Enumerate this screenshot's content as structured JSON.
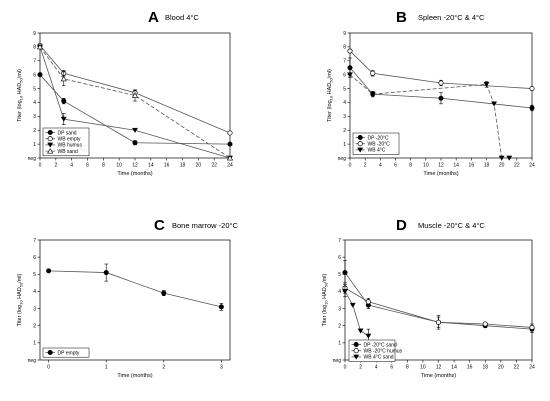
{
  "chart_data": [
    {
      "type": "line",
      "letter": "A",
      "title": "Blood 4°C",
      "xlabel": "Time (months)",
      "ylabel_parts": [
        "Titer (log",
        "10",
        " HAD",
        "50",
        "/ml)"
      ],
      "xticks": [
        0,
        2,
        4,
        6,
        8,
        10,
        12,
        14,
        16,
        18,
        20,
        22,
        24
      ],
      "xlim": [
        0,
        24
      ],
      "yticks": [
        0,
        1,
        2,
        3,
        4,
        5,
        6,
        7,
        8,
        9
      ],
      "ytick_labels": [
        "neg",
        "1",
        "2",
        "3",
        "4",
        "5",
        "6",
        "7",
        "8",
        "9"
      ],
      "ylim": [
        0,
        9
      ],
      "legend_position": "bottom-left",
      "series": [
        {
          "name": "DP sand",
          "marker": "filled-circle",
          "dash": "",
          "points": [
            {
              "x": 0,
              "y": 6.0,
              "err": 0.1
            },
            {
              "x": 3,
              "y": 4.1,
              "err": 0.2
            },
            {
              "x": 12,
              "y": 1.1,
              "err": 0.15
            },
            {
              "x": 24,
              "y": 1.0,
              "err": 0
            }
          ]
        },
        {
          "name": "WB empty",
          "marker": "open-circle",
          "dash": "",
          "points": [
            {
              "x": 0,
              "y": 8.1,
              "err": 0.1
            },
            {
              "x": 3,
              "y": 6.1,
              "err": 0.2
            },
            {
              "x": 12,
              "y": 4.7,
              "err": 0.2
            },
            {
              "x": 24,
              "y": 1.8,
              "err": 0
            }
          ]
        },
        {
          "name": "WB humus",
          "marker": "filled-triangle-down",
          "dash": "",
          "points": [
            {
              "x": 0,
              "y": 8.0,
              "err": 0.1
            },
            {
              "x": 3,
              "y": 2.8,
              "err": 0.4
            },
            {
              "x": 12,
              "y": 2.0,
              "err": 0
            },
            {
              "x": 24,
              "y": 0,
              "err": 0
            }
          ]
        },
        {
          "name": "WB sand",
          "marker": "open-triangle-up",
          "dash": "4,2",
          "points": [
            {
              "x": 0,
              "y": 8.0,
              "err": 0.1
            },
            {
              "x": 3,
              "y": 5.7,
              "err": 0.5
            },
            {
              "x": 12,
              "y": 4.5,
              "err": 0.4
            },
            {
              "x": 24,
              "y": 0,
              "err": 0
            }
          ]
        }
      ]
    },
    {
      "type": "line",
      "letter": "B",
      "title": "Spleen -20°C & 4°C",
      "xlabel": "Time (months)",
      "ylabel_parts": [
        "Titer (log",
        "10",
        " HAD",
        "50",
        "/ml)"
      ],
      "xticks": [
        0,
        2,
        4,
        6,
        8,
        10,
        12,
        14,
        16,
        18,
        20,
        22,
        24
      ],
      "xlim": [
        0,
        24
      ],
      "yticks": [
        0,
        1,
        2,
        3,
        4,
        5,
        6,
        7,
        8,
        9
      ],
      "ytick_labels": [
        "neg",
        "1",
        "2",
        "3",
        "4",
        "5",
        "6",
        "7",
        "8",
        "9"
      ],
      "ylim": [
        0,
        9
      ],
      "legend_position": "bottom-left",
      "series": [
        {
          "name": "DP -20°C",
          "marker": "filled-circle",
          "dash": "",
          "points": [
            {
              "x": 0,
              "y": 6.5,
              "err": 0.7
            },
            {
              "x": 3,
              "y": 4.6,
              "err": 0.2
            },
            {
              "x": 12,
              "y": 4.3,
              "err": 0.4
            },
            {
              "x": 24,
              "y": 3.6,
              "err": 0.2
            }
          ]
        },
        {
          "name": "WB -20°C",
          "marker": "open-circle",
          "dash": "",
          "points": [
            {
              "x": 0,
              "y": 7.7,
              "err": 0.1
            },
            {
              "x": 3,
              "y": 6.1,
              "err": 0.2
            },
            {
              "x": 12,
              "y": 5.4,
              "err": 0.2
            },
            {
              "x": 24,
              "y": 5.0,
              "err": 0
            }
          ]
        },
        {
          "name": "WB 4°C",
          "marker": "filled-triangle-down",
          "dash": "4,2",
          "points": [
            {
              "x": 0,
              "y": 6.0,
              "err": 0.1
            },
            {
              "x": 3,
              "y": 4.6,
              "err": 0.1
            },
            {
              "x": 18,
              "y": 5.3,
              "err": 0.2
            },
            {
              "x": 19,
              "y": 3.9,
              "err": 0
            },
            {
              "x": 20,
              "y": 0,
              "err": 0
            },
            {
              "x": 21,
              "y": 0,
              "err": 0
            }
          ]
        }
      ]
    },
    {
      "type": "line",
      "letter": "C",
      "title": "Bone marrow -20°C",
      "xlabel": "Time (months)",
      "ylabel_parts": [
        "Titer (log",
        "10",
        " HAD",
        "50",
        "/ml)"
      ],
      "xticks": [
        0,
        1,
        2,
        3
      ],
      "xlim": [
        -0.15,
        3.15
      ],
      "yticks": [
        0,
        1,
        2,
        3,
        4,
        5,
        6,
        7
      ],
      "ytick_labels": [
        "neg",
        "1",
        "2",
        "3",
        "4",
        "5",
        "6",
        "7"
      ],
      "ylim": [
        0,
        7
      ],
      "legend_position": "bottom-left",
      "series": [
        {
          "name": "DP empty",
          "marker": "filled-circle",
          "dash": "",
          "points": [
            {
              "x": 0,
              "y": 5.2,
              "err": 0
            },
            {
              "x": 1,
              "y": 5.1,
              "err": 0.5
            },
            {
              "x": 2,
              "y": 3.9,
              "err": 0.15
            },
            {
              "x": 3,
              "y": 3.1,
              "err": 0.2
            }
          ]
        }
      ]
    },
    {
      "type": "line",
      "letter": "D",
      "title": "Muscle -20°C & 4°C",
      "xlabel": "Time (months)",
      "ylabel_parts": [
        "Titer (log",
        "10",
        " HAD",
        "50",
        "/ml)"
      ],
      "xticks": [
        0,
        2,
        4,
        6,
        8,
        10,
        12,
        14,
        16,
        18,
        20,
        22,
        24
      ],
      "xlim": [
        0,
        24
      ],
      "yticks": [
        0,
        1,
        2,
        3,
        4,
        5,
        6,
        7
      ],
      "ytick_labels": [
        "neg",
        "1",
        "2",
        "3",
        "4",
        "5",
        "6",
        "7"
      ],
      "ylim": [
        0,
        7
      ],
      "legend_position": "bottom-left",
      "series": [
        {
          "name": "DP -20°C sand",
          "marker": "filled-circle",
          "dash": "",
          "points": [
            {
              "x": 0,
              "y": 5.1,
              "err": 0.7
            },
            {
              "x": 3,
              "y": 3.2,
              "err": 0.2
            },
            {
              "x": 12,
              "y": 2.2,
              "err": 0.4
            },
            {
              "x": 18,
              "y": 2.0,
              "err": 0.1
            },
            {
              "x": 24,
              "y": 1.8,
              "err": 0.2
            }
          ]
        },
        {
          "name": "WB -20°C humus",
          "marker": "open-circle",
          "dash": "",
          "points": [
            {
              "x": 0,
              "y": 4.2,
              "err": 0.3
            },
            {
              "x": 3,
              "y": 3.4,
              "err": 0.2
            },
            {
              "x": 12,
              "y": 2.2,
              "err": 0.3
            },
            {
              "x": 18,
              "y": 2.1,
              "err": 0.1
            },
            {
              "x": 24,
              "y": 1.9,
              "err": 0.2
            }
          ]
        },
        {
          "name": "WB 4°C sand",
          "marker": "filled-triangle-down",
          "dash": "",
          "points": [
            {
              "x": 0,
              "y": 4.0,
              "err": 0.3
            },
            {
              "x": 1,
              "y": 3.2,
              "err": 0
            },
            {
              "x": 2,
              "y": 1.7,
              "err": 0
            },
            {
              "x": 3,
              "y": 1.4,
              "err": 0.4
            }
          ]
        }
      ]
    }
  ]
}
